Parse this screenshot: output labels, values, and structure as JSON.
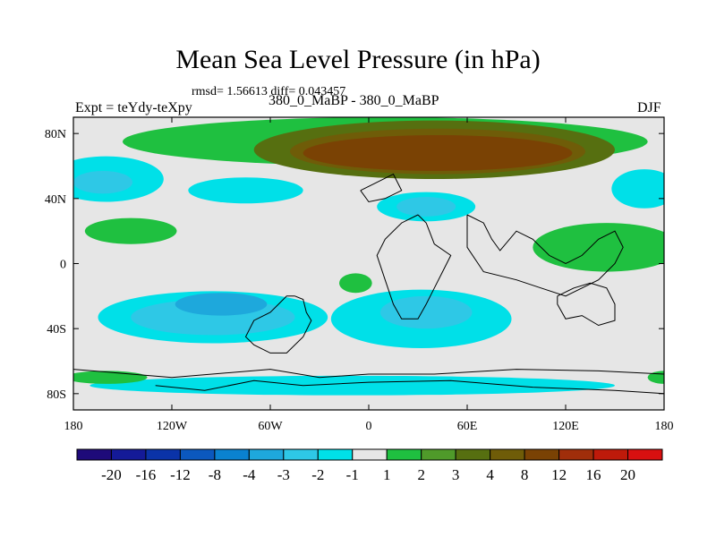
{
  "chart_data": {
    "type": "heatmap",
    "title": "Mean Sea Level Pressure (in hPa)",
    "stats_text": "rmsd= 1.56613 diff= 0.043457",
    "left_label": "Expt = teYdy-teXpy",
    "subtitle": "380_0_MaBP - 380_0_MaBP",
    "right_label": "DJF",
    "xlim": [
      -180,
      180
    ],
    "ylim": [
      -90,
      90
    ],
    "x_ticks": [
      {
        "value": -180,
        "label": "180"
      },
      {
        "value": -120,
        "label": "120W"
      },
      {
        "value": -60,
        "label": "60W"
      },
      {
        "value": 0,
        "label": "0"
      },
      {
        "value": 60,
        "label": "60E"
      },
      {
        "value": 120,
        "label": "120E"
      },
      {
        "value": 180,
        "label": "180"
      }
    ],
    "y_ticks": [
      {
        "value": 80,
        "label": "80N"
      },
      {
        "value": 40,
        "label": "40N"
      },
      {
        "value": 0,
        "label": "0"
      },
      {
        "value": -40,
        "label": "40S"
      },
      {
        "value": -80,
        "label": "80S"
      }
    ],
    "colorbar": {
      "levels": [
        "-20",
        "-16",
        "-12",
        "-8",
        "-4",
        "-3",
        "-2",
        "-1",
        "1",
        "2",
        "3",
        "4",
        "8",
        "12",
        "16",
        "20"
      ],
      "colors": [
        "#1e0a7a",
        "#141a98",
        "#0a33a8",
        "#0b58be",
        "#0a82d0",
        "#1ea8dc",
        "#2ec8e6",
        "#00e0e8",
        "#e6e6e6",
        "#1fc040",
        "#4f9a2a",
        "#566f10",
        "#6f5c08",
        "#7a4204",
        "#a02e0a",
        "#be1a0a",
        "#d81010"
      ]
    },
    "regions": [
      {
        "name": "arctic-ridge-outer",
        "level_index": 9,
        "center": [
          10,
          75
        ],
        "radius": [
          160,
          15
        ]
      },
      {
        "name": "arctic-ridge-mid",
        "level_index": 11,
        "center": [
          40,
          70
        ],
        "radius": [
          110,
          18
        ]
      },
      {
        "name": "arctic-ridge-inner",
        "level_index": 12,
        "center": [
          42,
          69
        ],
        "radius": [
          90,
          14
        ]
      },
      {
        "name": "arctic-ridge-core",
        "level_index": 13,
        "center": [
          42,
          68
        ],
        "radius": [
          82,
          11
        ]
      },
      {
        "name": "north-pacific-low",
        "level_index": 7,
        "center": [
          -160,
          52
        ],
        "radius": [
          35,
          14
        ]
      },
      {
        "name": "north-pacific-low-core",
        "level_index": 6,
        "center": [
          -162,
          50
        ],
        "radius": [
          18,
          7
        ]
      },
      {
        "name": "north-atlantic-low",
        "level_index": 7,
        "center": [
          -75,
          45
        ],
        "radius": [
          35,
          8
        ]
      },
      {
        "name": "eurasia-low",
        "level_index": 7,
        "center": [
          35,
          35
        ],
        "radius": [
          30,
          9
        ]
      },
      {
        "name": "eurasia-low-core",
        "level_index": 6,
        "center": [
          35,
          35
        ],
        "radius": [
          18,
          6
        ]
      },
      {
        "name": "east-siberia-low",
        "level_index": 7,
        "center": [
          168,
          46
        ],
        "radius": [
          20,
          12
        ]
      },
      {
        "name": "subtropical-pacific-high",
        "level_index": 9,
        "center": [
          -145,
          20
        ],
        "radius": [
          28,
          8
        ]
      },
      {
        "name": "west-pacific-high",
        "level_index": 9,
        "center": [
          145,
          10
        ],
        "radius": [
          45,
          15
        ]
      },
      {
        "name": "atlantic-high",
        "level_index": 9,
        "center": [
          -8,
          -12
        ],
        "radius": [
          10,
          6
        ]
      },
      {
        "name": "south-pacific-low",
        "level_index": 7,
        "center": [
          -95,
          -33
        ],
        "radius": [
          70,
          16
        ]
      },
      {
        "name": "south-pacific-low-mid",
        "level_index": 6,
        "center": [
          -95,
          -33
        ],
        "radius": [
          50,
          11
        ]
      },
      {
        "name": "south-pacific-low-core",
        "level_index": 5,
        "center": [
          -90,
          -25
        ],
        "radius": [
          28,
          7
        ]
      },
      {
        "name": "south-africa-low",
        "level_index": 7,
        "center": [
          32,
          -34
        ],
        "radius": [
          55,
          18
        ]
      },
      {
        "name": "south-africa-low-core",
        "level_index": 6,
        "center": [
          35,
          -30
        ],
        "radius": [
          28,
          10
        ]
      },
      {
        "name": "southern-ocean-low",
        "level_index": 7,
        "center": [
          -10,
          -75
        ],
        "radius": [
          160,
          6
        ]
      },
      {
        "name": "antarctic-high-west",
        "level_index": 9,
        "center": [
          -160,
          -70
        ],
        "radius": [
          25,
          4
        ]
      },
      {
        "name": "antarctic-high-east",
        "level_index": 9,
        "center": [
          180,
          -70
        ],
        "radius": [
          10,
          4
        ]
      }
    ],
    "coastlines": [
      [
        [
          -45,
          -20
        ],
        [
          -40,
          -22
        ],
        [
          -38,
          -30
        ],
        [
          -35,
          -35
        ],
        [
          -40,
          -45
        ],
        [
          -50,
          -55
        ],
        [
          -60,
          -55
        ],
        [
          -70,
          -50
        ],
        [
          -75,
          -45
        ],
        [
          -70,
          -35
        ],
        [
          -60,
          -30
        ],
        [
          -55,
          -25
        ],
        [
          -50,
          -20
        ],
        [
          -45,
          -20
        ]
      ],
      [
        [
          -5,
          45
        ],
        [
          5,
          50
        ],
        [
          15,
          55
        ],
        [
          20,
          45
        ],
        [
          10,
          40
        ],
        [
          0,
          38
        ],
        [
          -5,
          45
        ]
      ],
      [
        [
          30,
          30
        ],
        [
          35,
          25
        ],
        [
          40,
          12
        ],
        [
          50,
          5
        ],
        [
          45,
          -5
        ],
        [
          40,
          -15
        ],
        [
          35,
          -25
        ],
        [
          30,
          -34
        ],
        [
          20,
          -34
        ],
        [
          15,
          -25
        ],
        [
          10,
          -10
        ],
        [
          5,
          5
        ],
        [
          10,
          15
        ],
        [
          20,
          25
        ],
        [
          30,
          30
        ]
      ],
      [
        [
          60,
          30
        ],
        [
          70,
          25
        ],
        [
          75,
          15
        ],
        [
          80,
          8
        ],
        [
          90,
          20
        ],
        [
          100,
          15
        ],
        [
          110,
          5
        ],
        [
          120,
          0
        ],
        [
          130,
          5
        ],
        [
          140,
          15
        ],
        [
          150,
          20
        ],
        [
          155,
          10
        ],
        [
          150,
          0
        ],
        [
          140,
          -10
        ],
        [
          130,
          -15
        ],
        [
          120,
          -20
        ],
        [
          105,
          -15
        ],
        [
          90,
          -10
        ],
        [
          70,
          -5
        ],
        [
          60,
          10
        ],
        [
          60,
          30
        ]
      ],
      [
        [
          115,
          -20
        ],
        [
          125,
          -15
        ],
        [
          135,
          -12
        ],
        [
          145,
          -15
        ],
        [
          150,
          -25
        ],
        [
          150,
          -35
        ],
        [
          140,
          -38
        ],
        [
          130,
          -32
        ],
        [
          120,
          -34
        ],
        [
          115,
          -25
        ],
        [
          115,
          -20
        ]
      ],
      [
        [
          -180,
          -65
        ],
        [
          -120,
          -70
        ],
        [
          -60,
          -65
        ],
        [
          -30,
          -70
        ],
        [
          0,
          -68
        ],
        [
          40,
          -68
        ],
        [
          90,
          -65
        ],
        [
          140,
          -66
        ],
        [
          180,
          -68
        ]
      ],
      [
        [
          -130,
          -75
        ],
        [
          -100,
          -78
        ],
        [
          -70,
          -72
        ],
        [
          -40,
          -75
        ],
        [
          0,
          -73
        ],
        [
          50,
          -72
        ],
        [
          100,
          -76
        ],
        [
          150,
          -78
        ],
        [
          180,
          -80
        ]
      ]
    ]
  }
}
